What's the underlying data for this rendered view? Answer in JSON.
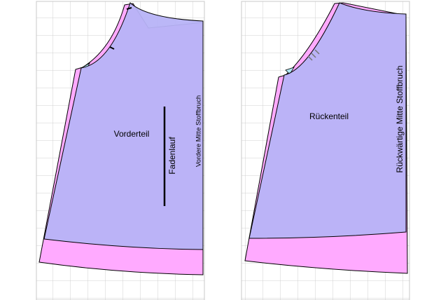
{
  "panels": [
    {
      "label": "Vorderteil",
      "grain_label": "Fadenlauf",
      "fold_label": "Vordere Mitte Stoffbruch"
    },
    {
      "label": "Rückenteil",
      "fold_label": "Rückwärtige Mitte Stoffbruch"
    }
  ]
}
